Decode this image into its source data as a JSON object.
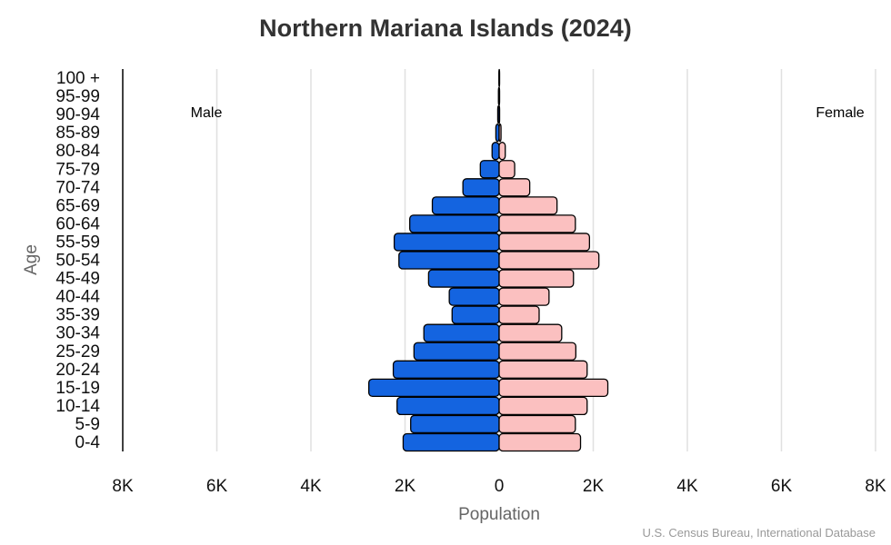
{
  "chart_data": {
    "type": "bar",
    "orientation": "horizontal-population-pyramid",
    "title": "Northern Mariana Islands (2024)",
    "xlabel": "Population",
    "ylabel": "Age",
    "caption": "U.S. Census Bureau, International Database",
    "xlim": [
      -8000,
      8000
    ],
    "x_tick_values": [
      -8000,
      -6000,
      -4000,
      -2000,
      0,
      2000,
      4000,
      6000,
      8000
    ],
    "x_tick_labels": [
      "8K",
      "6K",
      "4K",
      "2K",
      "0",
      "2K",
      "4K",
      "6K",
      "8K"
    ],
    "grid": true,
    "categories": [
      "0-4",
      "5-9",
      "10-14",
      "15-19",
      "20-24",
      "25-29",
      "30-34",
      "35-39",
      "40-44",
      "45-49",
      "50-54",
      "55-59",
      "60-64",
      "65-69",
      "70-74",
      "75-79",
      "80-84",
      "85-89",
      "90-94",
      "95-99",
      "100 +"
    ],
    "series": [
      {
        "name": "Male",
        "color": "#1464e0",
        "values": [
          2040,
          1880,
          2170,
          2770,
          2250,
          1810,
          1600,
          1000,
          1060,
          1500,
          2130,
          2230,
          1900,
          1420,
          770,
          400,
          150,
          70,
          30,
          15,
          5
        ]
      },
      {
        "name": "Female",
        "color": "#fbc0c0",
        "values": [
          1730,
          1620,
          1870,
          2310,
          1870,
          1630,
          1330,
          850,
          1060,
          1580,
          2120,
          1920,
          1620,
          1230,
          650,
          330,
          130,
          40,
          10,
          5,
          2
        ]
      }
    ]
  }
}
